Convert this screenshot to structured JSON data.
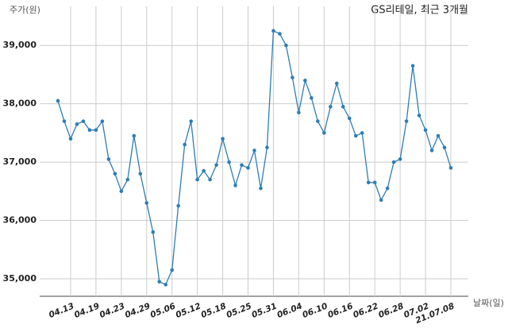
{
  "chart_data": {
    "type": "line",
    "title": "GS리테일, 최근 3개월",
    "y_label": "주가(원)",
    "x_label": "날짜(일)",
    "categories": [
      null,
      null,
      "04.13",
      null,
      null,
      null,
      "04.19",
      null,
      null,
      null,
      "04.23",
      null,
      null,
      null,
      "04.29",
      null,
      null,
      null,
      "05.06",
      null,
      null,
      null,
      "05.12",
      null,
      null,
      null,
      "05.18",
      null,
      null,
      null,
      "05.25",
      null,
      null,
      null,
      "05.31",
      null,
      null,
      null,
      "06.04",
      null,
      null,
      null,
      "06.10",
      null,
      null,
      null,
      "06.16",
      null,
      null,
      null,
      "06.22",
      null,
      null,
      null,
      "06.28",
      null,
      null,
      null,
      "07.02",
      null,
      null,
      null,
      "21.07.08"
    ],
    "series": [
      {
        "name": "주가",
        "color": "#2e7db5",
        "values": [
          38050,
          37700,
          37400,
          37650,
          37700,
          37550,
          37550,
          37700,
          37050,
          36800,
          36500,
          36700,
          37450,
          36800,
          36300,
          35800,
          34950,
          34900,
          35150,
          36250,
          37300,
          37700,
          36700,
          36850,
          36700,
          36950,
          37400,
          37000,
          36600,
          36950,
          36900,
          37200,
          36550,
          37250,
          39250,
          39200,
          39000,
          38450,
          37850,
          38400,
          38100,
          37700,
          37500,
          37950,
          38350,
          37950,
          37750,
          37450,
          37500,
          36650,
          36650,
          36350,
          36550,
          37000,
          37050,
          37700,
          38650,
          37800,
          37550,
          37200,
          37450,
          37250,
          36900
        ]
      }
    ],
    "ylim": [
      34700,
      39670
    ],
    "yticks": [
      {
        "value": 35000,
        "label": "35,000"
      },
      {
        "value": 36000,
        "label": "36,000"
      },
      {
        "value": 37000,
        "label": "37,000"
      },
      {
        "value": 38000,
        "label": "38,000"
      },
      {
        "value": 39000,
        "label": "39,000"
      }
    ],
    "grid": true
  }
}
